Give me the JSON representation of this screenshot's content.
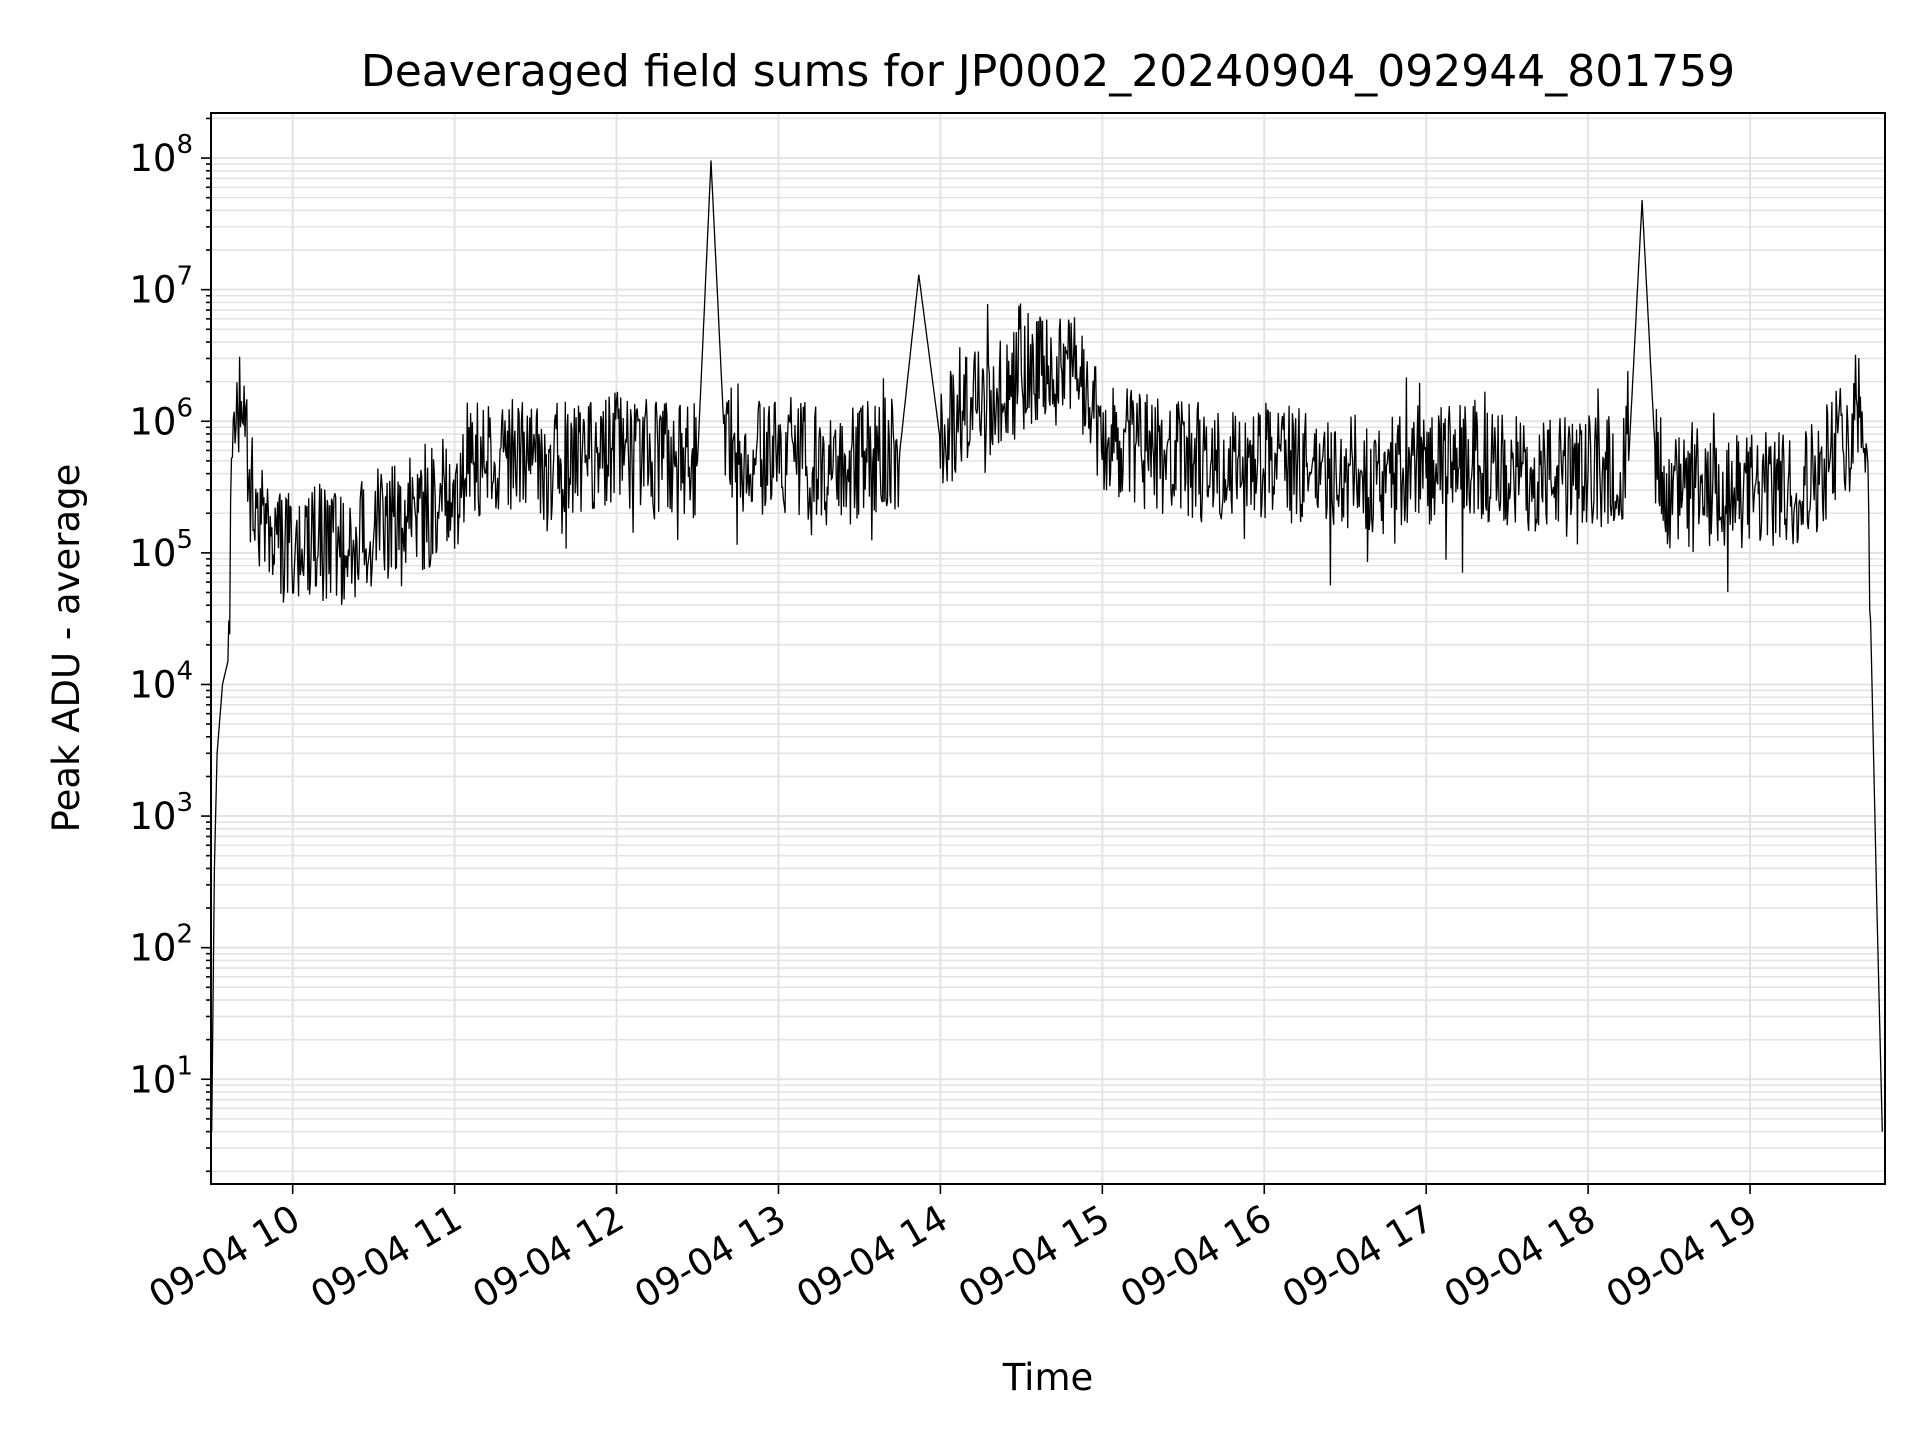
{
  "chart_data": {
    "type": "line",
    "title": "Deaveraged field sums for JP0002_20240904_092944_801759",
    "xlabel": "Time",
    "ylabel": "Peak ADU - average",
    "y_scale": "log",
    "ylim": [
      1.6,
      220000000
    ],
    "xlim": [
      "2024-09-04 09:29:44",
      "2024-09-04 19:50:00"
    ],
    "grid": true,
    "x_ticks": [
      {
        "at": "2024-09-04 10:00",
        "label": "09-04 10"
      },
      {
        "at": "2024-09-04 11:00",
        "label": "09-04 11"
      },
      {
        "at": "2024-09-04 12:00",
        "label": "09-04 12"
      },
      {
        "at": "2024-09-04 13:00",
        "label": "09-04 13"
      },
      {
        "at": "2024-09-04 14:00",
        "label": "09-04 14"
      },
      {
        "at": "2024-09-04 15:00",
        "label": "09-04 15"
      },
      {
        "at": "2024-09-04 16:00",
        "label": "09-04 16"
      },
      {
        "at": "2024-09-04 17:00",
        "label": "09-04 17"
      },
      {
        "at": "2024-09-04 18:00",
        "label": "09-04 18"
      },
      {
        "at": "2024-09-04 19:00",
        "label": "09-04 19"
      }
    ],
    "y_ticks": [
      {
        "value": 10,
        "base": "10",
        "exp": "1"
      },
      {
        "value": 100,
        "base": "10",
        "exp": "2"
      },
      {
        "value": 1000,
        "base": "10",
        "exp": "3"
      },
      {
        "value": 10000,
        "base": "10",
        "exp": "4"
      },
      {
        "value": 100000,
        "base": "10",
        "exp": "5"
      },
      {
        "value": 1000000,
        "base": "10",
        "exp": "6"
      },
      {
        "value": 10000000,
        "base": "10",
        "exp": "7"
      },
      {
        "value": 100000000,
        "base": "10",
        "exp": "8"
      }
    ],
    "series": [
      {
        "color": "#000000",
        "x": [
          "2024-09-04 09:30",
          "2024-09-04 09:31",
          "2024-09-04 09:32",
          "2024-09-04 09:34",
          "2024-09-04 09:36",
          "2024-09-04 09:38",
          "2024-09-04 09:40",
          "2024-09-04 09:42",
          "2024-09-04 09:44",
          "2024-09-04 09:46",
          "2024-09-04 09:48",
          "2024-09-04 09:50",
          "2024-09-04 09:52",
          "2024-09-04 09:55",
          "2024-09-04 10:00",
          "2024-09-04 10:10",
          "2024-09-04 10:20",
          "2024-09-04 10:30",
          "2024-09-04 10:40",
          "2024-09-04 10:50",
          "2024-09-04 11:00",
          "2024-09-04 11:05",
          "2024-09-04 11:15",
          "2024-09-04 11:30",
          "2024-09-04 11:45",
          "2024-09-04 12:00",
          "2024-09-04 12:15",
          "2024-09-04 12:30",
          "2024-09-04 12:35",
          "2024-09-04 12:40",
          "2024-09-04 12:50",
          "2024-09-04 13:00",
          "2024-09-04 13:15",
          "2024-09-04 13:30",
          "2024-09-04 13:45",
          "2024-09-04 13:52",
          "2024-09-04 14:00",
          "2024-09-04 14:10",
          "2024-09-04 14:20",
          "2024-09-04 14:30",
          "2024-09-04 14:40",
          "2024-09-04 14:50",
          "2024-09-04 15:00",
          "2024-09-04 15:15",
          "2024-09-04 15:30",
          "2024-09-04 15:45",
          "2024-09-04 16:00",
          "2024-09-04 16:15",
          "2024-09-04 16:30",
          "2024-09-04 16:45",
          "2024-09-04 17:00",
          "2024-09-04 17:15",
          "2024-09-04 17:30",
          "2024-09-04 17:45",
          "2024-09-04 18:00",
          "2024-09-04 18:15",
          "2024-09-04 18:20",
          "2024-09-04 18:25",
          "2024-09-04 18:30",
          "2024-09-04 18:45",
          "2024-09-04 19:00",
          "2024-09-04 19:15",
          "2024-09-04 19:25",
          "2024-09-04 19:35",
          "2024-09-04 19:40",
          "2024-09-04 19:43",
          "2024-09-04 19:45",
          "2024-09-04 19:47",
          "2024-09-04 19:49"
        ],
        "y": [
          4,
          400,
          3000,
          10000,
          15000,
          1100000,
          1200000,
          1200000,
          300000,
          200000,
          180000,
          150000,
          120000,
          110000,
          100000,
          120000,
          110000,
          150000,
          200000,
          200000,
          400000,
          500000,
          600000,
          500000,
          500000,
          600000,
          500000,
          500000,
          96000000,
          700000,
          500000,
          600000,
          500000,
          500000,
          600000,
          13000000,
          700000,
          1500000,
          1500000,
          2000000,
          2500000,
          2500000,
          700000,
          600000,
          500000,
          500000,
          500000,
          450000,
          400000,
          400000,
          450000,
          500000,
          400000,
          400000,
          400000,
          500000,
          48000000,
          500000,
          300000,
          250000,
          300000,
          300000,
          400000,
          800000,
          1500000,
          1000000,
          15000,
          200,
          4
        ]
      }
    ]
  }
}
